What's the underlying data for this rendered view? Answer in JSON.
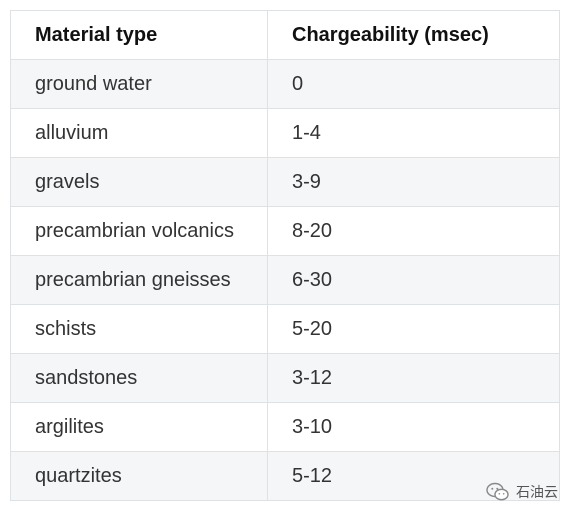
{
  "table": {
    "headers": [
      "Material type",
      "Chargeability (msec)"
    ],
    "rows": [
      [
        "ground water",
        "0"
      ],
      [
        "alluvium",
        "1-4"
      ],
      [
        "gravels",
        "3-9"
      ],
      [
        "precambrian volcanics",
        "8-20"
      ],
      [
        "precambrian gneisses",
        "6-30"
      ],
      [
        "schists",
        "5-20"
      ],
      [
        "sandstones",
        "3-12"
      ],
      [
        "argilites",
        "3-10"
      ],
      [
        "quartzites",
        "5-12"
      ]
    ]
  },
  "watermark": {
    "icon": "wechat-icon",
    "text": "石油云"
  }
}
